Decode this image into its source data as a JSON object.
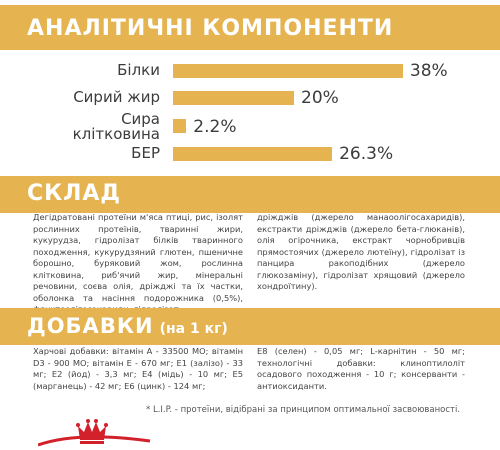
{
  "analytics": {
    "title": "АНАЛІТИЧНІ КОМПОНЕНТИ",
    "rows": [
      {
        "label_lines": [
          "Білки"
        ],
        "value": "38%",
        "percent": 38
      },
      {
        "label_lines": [
          "Сирий жир"
        ],
        "value": "20%",
        "percent": 20
      },
      {
        "label_lines": [
          "Сира",
          "клітковина"
        ],
        "value": "2.2%",
        "percent": 2.2
      },
      {
        "label_lines": [
          "БЕР"
        ],
        "value": "26.3%",
        "percent": 26.3
      }
    ]
  },
  "composition": {
    "title": "СКЛАД",
    "text_left": "Дегідратовані протеїни м'яса птиці, рис, ізолят рослинних протеїнів, тваринні жири, кукурудза, гідролізат білків тваринного походження, кукурудзяний глютен, пшеничне борошно, буряковий жом, рослинна клітковина, риб'ячий жир, мінеральні речовини, соєва олія, дріжджі та їх частки, оболонка та насіння подорожника (0,5%), фруктоолігосахариди, гідролізат",
    "text_right": "дріжджів (джерело манаоолігосахаридів), екстракти дріжджів (джерело бета-глюканів), олія огірочника, екстракт чорнобривців прямостоячих (джерело лютеїну), гідролізат із панцира ракоподібних (джерело глюкозаміну), гідролізат хрящовий (джерело хондроїтину)."
  },
  "additives": {
    "title": "ДОБАВКИ",
    "subtitle": "(на 1 кг)",
    "text_left": "Харчові добавки: вітамін А - 33500 МО; вітамін D3 - 900 МО; вітамін Е - 670 мг; Е1 (залізо) - 33 мг; Е2 (йод) - 3,3 мг; Е4 (мідь) - 10 мг; Е5 (марганець) - 42 мг; Е6 (цинк) - 124 мг;",
    "text_right": "Е8 (селен) - 0,05 мг; L-карнітин - 50 мг; технологічні добавки: клиноптилоліт осадового походження - 10 г; консерванти - антиоксиданти."
  },
  "footnote": "* L.I.P. - протеїни, відібрані за принципом оптимальної засвоюваності.",
  "colors": {
    "accent": "#e5b350",
    "brand_red": "#d2212b",
    "text": "#3c3c3c"
  }
}
